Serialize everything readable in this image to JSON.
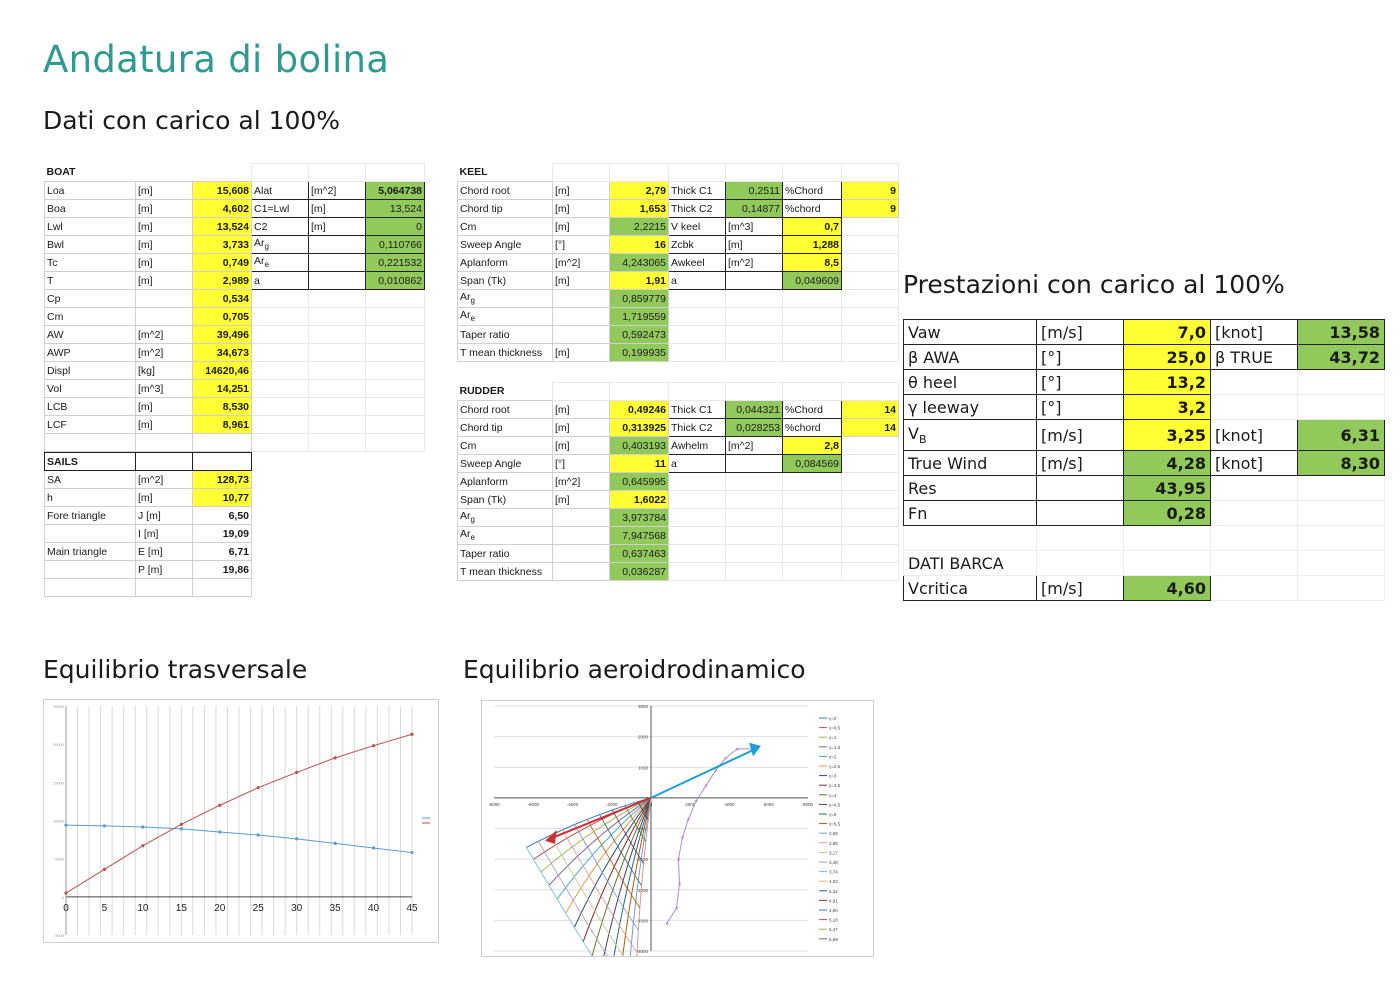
{
  "title": "Andatura di bolina",
  "subtitle": "Dati con carico al 100%",
  "perf_title": "Prestazioni con carico al 100%",
  "chart1_title": "Equilibrio trasversale",
  "chart2_title": "Equilibrio aeroidrodinamico",
  "boat": {
    "header": "BOAT",
    "rows": [
      [
        "Loa",
        "[m]",
        "15,608",
        "Alat",
        "[m^2]",
        "5,064738"
      ],
      [
        "Boa",
        "[m]",
        "4,602",
        "C1=Lwl",
        "[m]",
        "13,524"
      ],
      [
        "Lwl",
        "[m]",
        "13,524",
        "C2",
        "[m]",
        "0"
      ],
      [
        "Bwl",
        "[m]",
        "3,733",
        "Arg",
        "",
        "0,110766"
      ],
      [
        "Tc",
        "[m]",
        "0,749",
        "Are",
        "",
        "0,221532"
      ],
      [
        "T",
        "[m]",
        "2,989",
        "a",
        "",
        "0,010862"
      ],
      [
        "Cp",
        "",
        "0,534",
        "",
        "",
        ""
      ],
      [
        "Cm",
        "",
        "0,705",
        "",
        "",
        ""
      ],
      [
        "AW",
        "[m^2]",
        "39,496",
        "",
        "",
        ""
      ],
      [
        "AWP",
        "[m^2]",
        "34,673",
        "",
        "",
        ""
      ],
      [
        "Displ",
        "[kg]",
        "14620,46",
        "",
        "",
        ""
      ],
      [
        "Vol",
        "[m^3]",
        "14,251",
        "",
        "",
        ""
      ],
      [
        "LCB",
        "[m]",
        "8,530",
        "",
        "",
        ""
      ],
      [
        "LCF",
        "[m]",
        "8,961",
        "",
        "",
        ""
      ]
    ]
  },
  "sails": {
    "header": "SAILS",
    "rows": [
      [
        "SA",
        "[m^2]",
        "128,73"
      ],
      [
        "h",
        "[m]",
        "10,77"
      ],
      [
        "Fore triangle",
        "J [m]",
        "6,50"
      ],
      [
        "",
        "I [m]",
        "19,09"
      ],
      [
        "Main triangle",
        "E [m]",
        "6,71"
      ],
      [
        "",
        "P [m]",
        "19,86"
      ]
    ]
  },
  "keel": {
    "header": "KEEL",
    "rows": [
      [
        "Chord root",
        "[m]",
        "2,79",
        "Thick C1",
        "0,2511",
        "%Chord",
        "9"
      ],
      [
        "Chord tip",
        "[m]",
        "1,653",
        "Thick C2",
        "0,14877",
        "%chord",
        "9"
      ],
      [
        "Cm",
        "[m]",
        "2,2215",
        "V keel",
        "[m^3]",
        "0,7",
        ""
      ],
      [
        "Sweep Angle",
        "[°]",
        "16",
        "Zcbk",
        "[m]",
        "1,288",
        ""
      ],
      [
        "Aplanform",
        "[m^2]",
        "4,243065",
        "Awkeel",
        "[m^2]",
        "8,5",
        ""
      ],
      [
        "Span (Tk)",
        "[m]",
        "1,91",
        "a",
        "",
        "0,049609",
        ""
      ],
      [
        "Arg",
        "",
        "0,859779",
        "",
        "",
        "",
        ""
      ],
      [
        "Are",
        "",
        "1,719559",
        "",
        "",
        "",
        ""
      ],
      [
        "Taper ratio",
        "",
        "0,592473",
        "",
        "",
        "",
        ""
      ],
      [
        "T mean thickness",
        "[m]",
        "0,199935",
        "",
        "",
        "",
        ""
      ]
    ]
  },
  "rudder": {
    "header": "RUDDER",
    "rows": [
      [
        "Chord root",
        "[m]",
        "0,49246",
        "Thick C1",
        "0,044321",
        "%Chord",
        "14"
      ],
      [
        "Chord tip",
        "[m]",
        "0,313925",
        "Thick C2",
        "0,028253",
        "%chord",
        "14"
      ],
      [
        "Cm",
        "[m]",
        "0,403193",
        "Awhelm",
        "[m^2]",
        "2,8",
        ""
      ],
      [
        "Sweep Angle",
        "[°]",
        "11",
        "a",
        "",
        "0,084569",
        ""
      ],
      [
        "Aplanform",
        "[m^2]",
        "0,645995",
        "",
        "",
        "",
        ""
      ],
      [
        "Span (Tk)",
        "[m]",
        "1,6022",
        "",
        "",
        "",
        ""
      ],
      [
        "Arg",
        "",
        "3,973784",
        "",
        "",
        "",
        ""
      ],
      [
        "Are",
        "",
        "7,947568",
        "",
        "",
        "",
        ""
      ],
      [
        "Taper ratio",
        "",
        "0,637463",
        "",
        "",
        "",
        ""
      ],
      [
        "T mean thickness",
        "",
        "0,036287",
        "",
        "",
        "",
        ""
      ]
    ]
  },
  "perf": {
    "rows": [
      [
        "Vaw",
        "[m/s]",
        "7,0",
        "[knot]",
        "13,58"
      ],
      [
        "β AWA",
        "[°]",
        "25,0",
        "β TRUE",
        "43,72"
      ],
      [
        "θ heel",
        "[°]",
        "13,2",
        "",
        ""
      ],
      [
        "γ leeway",
        "[°]",
        "3,2",
        "",
        ""
      ],
      [
        "VB",
        "[m/s]",
        "3,25",
        "[knot]",
        "6,31"
      ],
      [
        "True Wind",
        "[m/s]",
        "4,28",
        "[knot]",
        "8,30"
      ],
      [
        "Res",
        "",
        "43,95",
        "",
        ""
      ],
      [
        "Fn",
        "",
        "0,28",
        "",
        ""
      ]
    ],
    "section": "DATI BARCA",
    "vcritica": [
      "Vcritica",
      "[m/s]",
      "4,60"
    ]
  },
  "chart_data": [
    {
      "type": "line",
      "title": "",
      "x": [
        0,
        5,
        10,
        15,
        20,
        25,
        30,
        35,
        40,
        45
      ],
      "xlim": [
        0,
        45
      ],
      "ylim": [
        -5000,
        25000
      ],
      "grid": true,
      "legend": "right",
      "series": [
        {
          "name": "",
          "color": "#5b9bd5",
          "values": [
            9400,
            9300,
            9150,
            8900,
            8500,
            8100,
            7600,
            7000,
            6400,
            5800
          ]
        },
        {
          "name": "",
          "color": "#c0504d",
          "values": [
            500,
            3600,
            6700,
            9500,
            12000,
            14300,
            16300,
            18200,
            19800,
            21300
          ]
        }
      ]
    },
    {
      "type": "line",
      "title": "",
      "xlim": [
        -8000,
        8000
      ],
      "ylim": [
        -5000,
        3000
      ],
      "legend": "right",
      "legend_entries": [
        "γ=0",
        "γ=0,5",
        "γ=1",
        "γ=1,5",
        "γ=2",
        "γ=2,5",
        "γ=3",
        "γ=3,5",
        "γ=4",
        "γ=4,5",
        "γ=5",
        "γ=5,5",
        "2,59",
        "2,88",
        "3,17",
        "3,46",
        "3,74",
        "4,03",
        "4,32",
        "4,61",
        "4,90",
        "5,18",
        "5,47",
        "6,59"
      ],
      "x_ticks": [
        "-8000",
        "-6000",
        "-4000",
        "-2000",
        "0",
        "2000",
        "4000",
        "6000",
        "8000"
      ],
      "y_ticks": [
        "3000",
        "2000",
        "1000",
        "0",
        "-1000",
        "-2000",
        "-3000",
        "-4000",
        "-5000"
      ]
    }
  ]
}
